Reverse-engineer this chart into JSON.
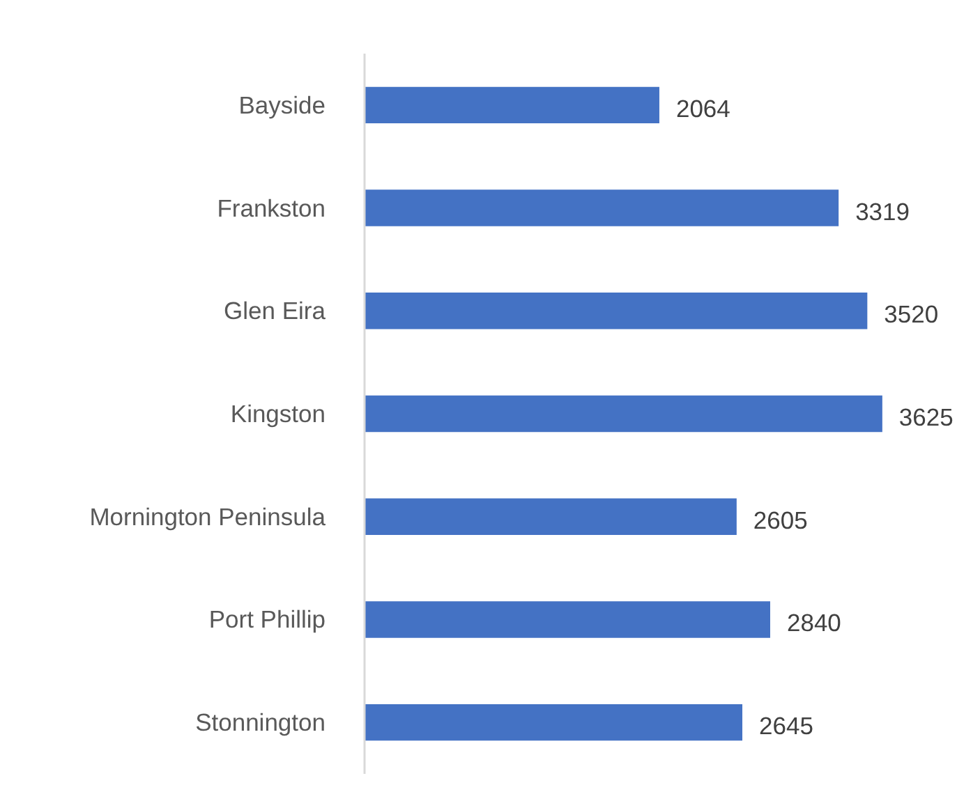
{
  "chart_data": {
    "type": "bar",
    "orientation": "horizontal",
    "tick_labels": "y",
    "data_labels": true,
    "color": "#4472c4",
    "categories": [
      "Bayside",
      "Frankston",
      "Glen Eira",
      "Kingston",
      "Mornington Peninsula",
      "Port Phillip",
      "Stonnington"
    ],
    "values": [
      2064,
      3319,
      3520,
      3625,
      2605,
      2840,
      2645
    ]
  }
}
